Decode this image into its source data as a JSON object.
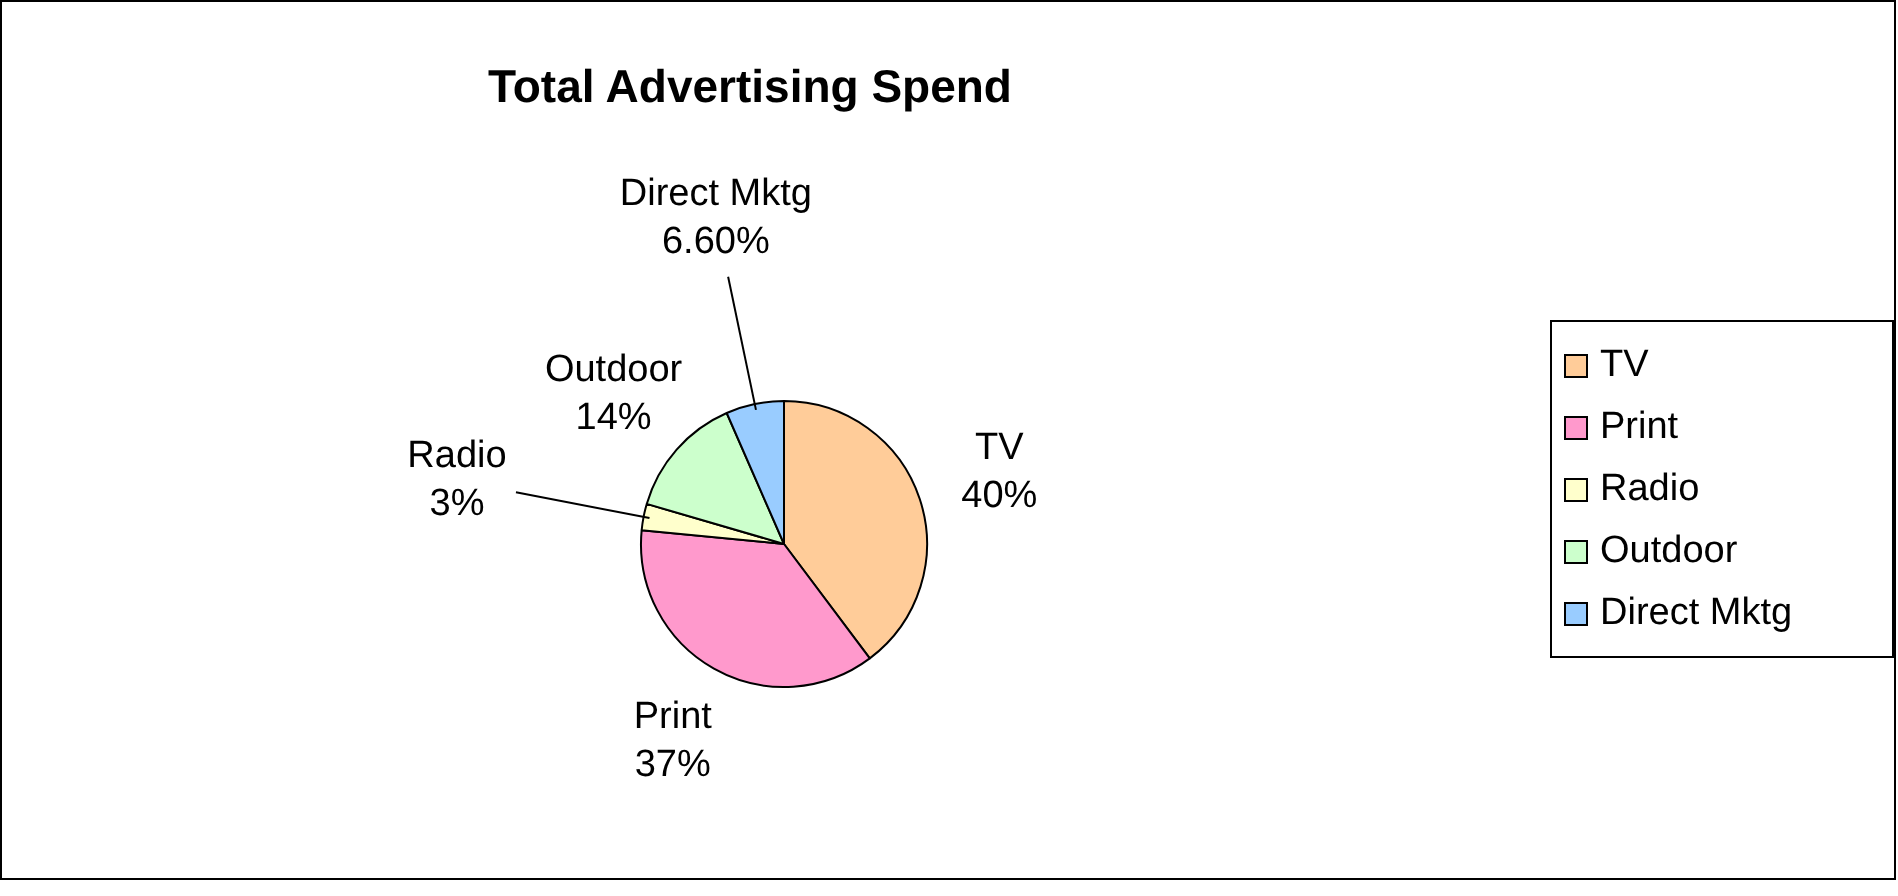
{
  "chart_data": {
    "type": "pie",
    "title": "Total Advertising Spend",
    "categories": [
      "TV",
      "Print",
      "Radio",
      "Outdoor",
      "Direct Mktg"
    ],
    "values": [
      40,
      37,
      3,
      14,
      6.6
    ],
    "value_labels": [
      "40%",
      "37%",
      "3%",
      "14%",
      "6.60%"
    ],
    "colors": [
      "#ffcc99",
      "#ff99cc",
      "#ffffcc",
      "#ccffcc",
      "#99ccff"
    ],
    "legend": "right"
  }
}
